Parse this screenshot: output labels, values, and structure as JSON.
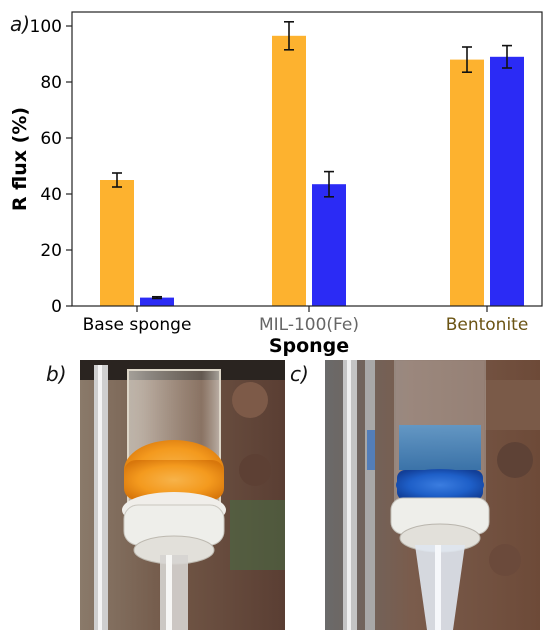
{
  "panel_labels": {
    "a": "a)",
    "b": "b)",
    "c": "c)"
  },
  "chart_data": {
    "type": "bar",
    "categories": [
      "Base sponge",
      "MIL-100(Fe)",
      "Bentonite"
    ],
    "category_colors": [
      "#000000",
      "#666666",
      "#6b5414"
    ],
    "series": [
      {
        "color": "#FDB22F",
        "values": [
          45,
          96.5,
          88
        ],
        "errors": [
          2.5,
          5,
          4.5
        ]
      },
      {
        "color": "#2B2BF5",
        "values": [
          3,
          43.5,
          89
        ],
        "errors": [
          0.3,
          4.5,
          4
        ]
      }
    ],
    "xlabel": "Sponge",
    "ylabel": "R flux (%)",
    "ylim": [
      0,
      105
    ],
    "yticks": [
      0,
      20,
      40,
      60,
      80,
      100
    ],
    "grid": false
  },
  "photos": {
    "b": {
      "colors": {
        "sponge": "#F49A1E",
        "background": "#6E4A3A",
        "ring": "#EEEEEA"
      }
    },
    "c": {
      "colors": {
        "sponge": "#1E5FC8",
        "liquid": "#2A6FB0",
        "background": "#6E4A3A",
        "ring": "#EEEEEA"
      }
    }
  }
}
